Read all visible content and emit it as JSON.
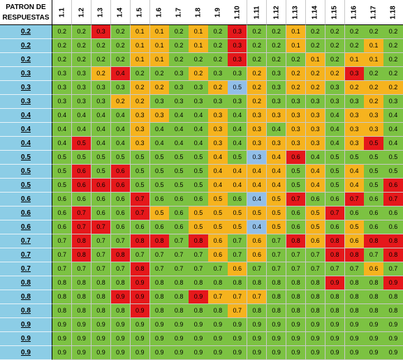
{
  "header": {
    "row_header_line1": "PATRON DE",
    "row_header_line2": "RESPUESTAS",
    "columns": [
      "1.1",
      "1.2",
      "1.3",
      "1.4",
      "1.5",
      "1.6",
      "1.7",
      "1.8",
      "1.9",
      "1.10",
      "1.11",
      "1.12",
      "1.13",
      "1.14",
      "1.15",
      "1.16",
      "1.17",
      "1.18"
    ]
  },
  "colors": {
    "green": "#7cc242",
    "orange": "#f6b31e",
    "red": "#e5181b",
    "blue": "#92bfe8",
    "label_bg": "#8ccde6"
  },
  "rows": [
    {
      "label": "0.2",
      "values": [
        "0.2",
        "0.2",
        "0.3",
        "0.2",
        "0.1",
        "0.1",
        "0.2",
        "0.1",
        "0.2",
        "0.3",
        "0.2",
        "0.2",
        "0.1",
        "0.2",
        "0.2",
        "0.2",
        "0.2",
        "0.2"
      ],
      "colors": "GGRGOOGOGRGGOGGGGG"
    },
    {
      "label": "0.2",
      "values": [
        "0.2",
        "0.2",
        "0.2",
        "0.2",
        "0.1",
        "0.1",
        "0.2",
        "0.1",
        "0.2",
        "0.3",
        "0.2",
        "0.2",
        "0.1",
        "0.2",
        "0.2",
        "0.2",
        "0.1",
        "0.2"
      ],
      "colors": "GGGGOOGOGRGGOGGGOG"
    },
    {
      "label": "0.2",
      "values": [
        "0.2",
        "0.2",
        "0.2",
        "0.2",
        "0.1",
        "0.1",
        "0.2",
        "0.2",
        "0.2",
        "0.3",
        "0.2",
        "0.2",
        "0.2",
        "0.1",
        "0.2",
        "0.1",
        "0.1",
        "0.2"
      ],
      "colors": "GGGGOOGGGRGGGOGOOG"
    },
    {
      "label": "0.3",
      "values": [
        "0.3",
        "0.3",
        "0.2",
        "0.4",
        "0.2",
        "0.2",
        "0.3",
        "0.2",
        "0.3",
        "0.3",
        "0.2",
        "0.3",
        "0.2",
        "0.2",
        "0.2",
        "0.3",
        "0.2",
        "0.2"
      ],
      "colors": "GGORGGGOGGOGOOORGG"
    },
    {
      "label": "0.3",
      "values": [
        "0.3",
        "0.3",
        "0.3",
        "0.3",
        "0.2",
        "0.2",
        "0.3",
        "0.3",
        "0.2",
        "0.5",
        "0.2",
        "0.3",
        "0.2",
        "0.2",
        "0.3",
        "0.2",
        "0.2",
        "0.2"
      ],
      "colors": "GGGGOOGGOBOGOOGOOO"
    },
    {
      "label": "0.3",
      "values": [
        "0.3",
        "0.3",
        "0.3",
        "0.2",
        "0.2",
        "0.3",
        "0.3",
        "0.3",
        "0.3",
        "0.3",
        "0.2",
        "0.3",
        "0.3",
        "0.3",
        "0.3",
        "0.3",
        "0.2",
        "0.3"
      ],
      "colors": "GGGOOGGGGGOGGGGGOG"
    },
    {
      "label": "0.4",
      "values": [
        "0.4",
        "0.4",
        "0.4",
        "0.4",
        "0.3",
        "0.3",
        "0.4",
        "0.4",
        "0.3",
        "0.4",
        "0.3",
        "0.3",
        "0.3",
        "0.3",
        "0.4",
        "0.3",
        "0.3",
        "0.4"
      ],
      "colors": "GGGGOOGGOGOOOOGOOG"
    },
    {
      "label": "0.4",
      "values": [
        "0.4",
        "0.4",
        "0.4",
        "0.4",
        "0.3",
        "0.4",
        "0.4",
        "0.4",
        "0.3",
        "0.4",
        "0.3",
        "0.4",
        "0.3",
        "0.3",
        "0.4",
        "0.3",
        "0.3",
        "0.4"
      ],
      "colors": "GGGGOGGGOGOGOOGOOG"
    },
    {
      "label": "0.4",
      "values": [
        "0.4",
        "0.5",
        "0.4",
        "0.4",
        "0.3",
        "0.4",
        "0.4",
        "0.4",
        "0.3",
        "0.4",
        "0.3",
        "0.3",
        "0.3",
        "0.3",
        "0.4",
        "0.3",
        "0.5",
        "0.4"
      ],
      "colors": "GRGGOGGGOGOOOOGORG"
    },
    {
      "label": "0.5",
      "values": [
        "0.5",
        "0.5",
        "0.5",
        "0.5",
        "0.5",
        "0.5",
        "0.5",
        "0.5",
        "0.4",
        "0.5",
        "0.3",
        "0.4",
        "0.6",
        "0.4",
        "0.5",
        "0.5",
        "0.5",
        "0.5"
      ],
      "colors": "GGGGGGGGOGBORGGGGG"
    },
    {
      "label": "0.5",
      "values": [
        "0.5",
        "0.6",
        "0.5",
        "0.6",
        "0.5",
        "0.5",
        "0.5",
        "0.5",
        "0.4",
        "0.4",
        "0.4",
        "0.4",
        "0.5",
        "0.4",
        "0.5",
        "0.4",
        "0.5",
        "0.5"
      ],
      "colors": "GRGRGGGGOOOOGOGOGG"
    },
    {
      "label": "0.5",
      "values": [
        "0.5",
        "0.6",
        "0.6",
        "0.6",
        "0.5",
        "0.5",
        "0.5",
        "0.5",
        "0.4",
        "0.4",
        "0.4",
        "0.4",
        "0.5",
        "0.4",
        "0.5",
        "0.4",
        "0.5",
        "0.6"
      ],
      "colors": "GRRRGGGGOOOOGOGOGR"
    },
    {
      "label": "0.6",
      "values": [
        "0.6",
        "0.6",
        "0.6",
        "0.6",
        "0.7",
        "0.6",
        "0.6",
        "0.6",
        "0.5",
        "0.6",
        "0.4",
        "0.5",
        "0.7",
        "0.6",
        "0.6",
        "0.7",
        "0.6",
        "0.7"
      ],
      "colors": "GGGGRGGGOGBORGGRGR"
    },
    {
      "label": "0.6",
      "values": [
        "0.6",
        "0.7",
        "0.6",
        "0.6",
        "0.7",
        "0.5",
        "0.6",
        "0.5",
        "0.5",
        "0.5",
        "0.5",
        "0.5",
        "0.6",
        "0.5",
        "0.7",
        "0.6",
        "0.6",
        "0.6"
      ],
      "colors": "GRGGROGOOOOOGORGGG"
    },
    {
      "label": "0.6",
      "values": [
        "0.6",
        "0.7",
        "0.7",
        "0.6",
        "0.6",
        "0.6",
        "0.6",
        "0.5",
        "0.5",
        "0.5",
        "0.4",
        "0.5",
        "0.6",
        "0.5",
        "0.6",
        "0.5",
        "0.6",
        "0.6"
      ],
      "colors": "GRRGGGGOOOBOGOGOGG"
    },
    {
      "label": "0.7",
      "values": [
        "0.7",
        "0.8",
        "0.7",
        "0.7",
        "0.8",
        "0.8",
        "0.7",
        "0.8",
        "0.6",
        "0.7",
        "0.6",
        "0.7",
        "0.8",
        "0.6",
        "0.8",
        "0.6",
        "0.8",
        "0.8"
      ],
      "colors": "GRGGRRGROGOGRORORR"
    },
    {
      "label": "0.7",
      "values": [
        "0.7",
        "0.8",
        "0.7",
        "0.8",
        "0.7",
        "0.7",
        "0.7",
        "0.7",
        "0.6",
        "0.7",
        "0.6",
        "0.7",
        "0.7",
        "0.7",
        "0.8",
        "0.8",
        "0.7",
        "0.8"
      ],
      "colors": "GRGRGGGGOGOGGGRRGR"
    },
    {
      "label": "0.7",
      "values": [
        "0.7",
        "0.7",
        "0.7",
        "0.7",
        "0.8",
        "0.7",
        "0.7",
        "0.7",
        "0.7",
        "0.6",
        "0.7",
        "0.7",
        "0.7",
        "0.7",
        "0.7",
        "0.7",
        "0.6",
        "0.7"
      ],
      "colors": "GGGGRGGGGOGGGGGGOG"
    },
    {
      "label": "0.8",
      "values": [
        "0.8",
        "0.8",
        "0.8",
        "0.8",
        "0.9",
        "0.8",
        "0.8",
        "0.8",
        "0.8",
        "0.8",
        "0.8",
        "0.8",
        "0.8",
        "0.8",
        "0.9",
        "0.8",
        "0.8",
        "0.9"
      ],
      "colors": "GGGGRGGGGGGGGGRGGR"
    },
    {
      "label": "0.8",
      "values": [
        "0.8",
        "0.8",
        "0.8",
        "0.9",
        "0.9",
        "0.8",
        "0.8",
        "0.9",
        "0.7",
        "0.7",
        "0.7",
        "0.8",
        "0.8",
        "0.8",
        "0.8",
        "0.8",
        "0.8",
        "0.8"
      ],
      "colors": "GGGRRGGROOOGGGGGGG"
    },
    {
      "label": "0.8",
      "values": [
        "0.8",
        "0.8",
        "0.8",
        "0.8",
        "0.9",
        "0.8",
        "0.8",
        "0.8",
        "0.8",
        "0.7",
        "0.8",
        "0.8",
        "0.8",
        "0.8",
        "0.8",
        "0.8",
        "0.8",
        "0.8"
      ],
      "colors": "GGGGRGGGGOGGGGGGGG"
    },
    {
      "label": "0.9",
      "values": [
        "0.9",
        "0.9",
        "0.9",
        "0.9",
        "0.9",
        "0.9",
        "0.9",
        "0.9",
        "0.9",
        "0.9",
        "0.9",
        "0.9",
        "0.9",
        "0.9",
        "0.9",
        "0.9",
        "0.9",
        "0.9"
      ],
      "colors": "GGGGGGGGGGGGGGGGGG"
    },
    {
      "label": "0.9",
      "values": [
        "0.9",
        "0.9",
        "0.9",
        "0.9",
        "0.9",
        "0.9",
        "0.9",
        "0.9",
        "0.9",
        "0.9",
        "0.9",
        "0.9",
        "0.9",
        "0.9",
        "0.9",
        "0.9",
        "0.9",
        "0.9"
      ],
      "colors": "GGGGGGGGGGGGGGGGGG"
    },
    {
      "label": "0.9",
      "values": [
        "0.9",
        "0.9",
        "0.9",
        "0.9",
        "0.9",
        "0.9",
        "0.9",
        "0.9",
        "0.9",
        "0.9",
        "0.9",
        "0.9",
        "0.9",
        "0.9",
        "0.9",
        "0.9",
        "0.9",
        "0.9"
      ],
      "colors": "GGGGGGGGGGGGGGGGGG"
    }
  ]
}
